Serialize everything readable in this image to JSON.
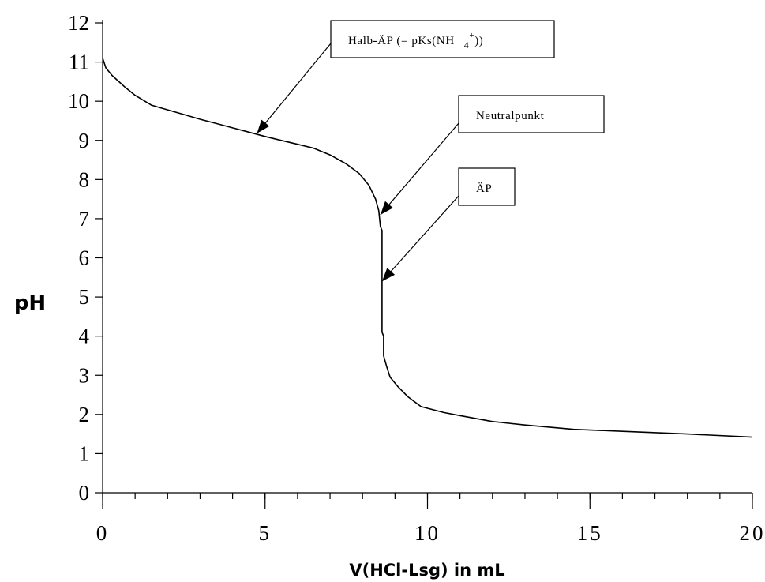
{
  "chart_data": {
    "type": "line",
    "title": "",
    "xlabel": "V(HCl-Lsg) in mL",
    "ylabel": "pH",
    "xlim": [
      0,
      20
    ],
    "ylim": [
      0,
      12
    ],
    "x_ticks": [
      "0",
      "5",
      "10",
      "15",
      "20"
    ],
    "y_ticks": [
      "0",
      "1",
      "2",
      "3",
      "4",
      "5",
      "6",
      "7",
      "8",
      "9",
      "10",
      "11",
      "12"
    ],
    "x_minor_step": 1,
    "grid": false,
    "series": [
      {
        "color": "#000000",
        "points": [
          [
            0,
            11.1
          ],
          [
            0.1,
            10.85
          ],
          [
            0.3,
            10.65
          ],
          [
            0.5,
            10.5
          ],
          [
            0.7,
            10.35
          ],
          [
            1.0,
            10.15
          ],
          [
            1.5,
            9.9
          ],
          [
            2.0,
            9.78
          ],
          [
            2.5,
            9.66
          ],
          [
            3.0,
            9.54
          ],
          [
            3.5,
            9.43
          ],
          [
            4.0,
            9.32
          ],
          [
            4.5,
            9.21
          ],
          [
            5.0,
            9.1
          ],
          [
            5.5,
            9.0
          ],
          [
            6.0,
            8.9
          ],
          [
            6.5,
            8.8
          ],
          [
            7.0,
            8.63
          ],
          [
            7.5,
            8.4
          ],
          [
            7.9,
            8.15
          ],
          [
            8.2,
            7.85
          ],
          [
            8.4,
            7.5
          ],
          [
            8.5,
            7.2
          ],
          [
            8.55,
            6.8
          ],
          [
            8.6,
            6.7
          ],
          [
            8.6,
            4.1
          ],
          [
            8.65,
            4.0
          ],
          [
            8.65,
            3.5
          ],
          [
            8.75,
            3.2
          ],
          [
            8.85,
            2.95
          ],
          [
            9.1,
            2.7
          ],
          [
            9.4,
            2.45
          ],
          [
            9.8,
            2.2
          ],
          [
            10.5,
            2.05
          ],
          [
            11.0,
            1.97
          ],
          [
            12.0,
            1.82
          ],
          [
            13.0,
            1.73
          ],
          [
            14.5,
            1.62
          ],
          [
            16.0,
            1.57
          ],
          [
            18.0,
            1.5
          ],
          [
            20.0,
            1.42
          ]
        ]
      }
    ],
    "annotations": [
      {
        "text": "Halb-ÄP (= pKs(NH",
        "sub": "4",
        "sup": "+",
        "tail": "))",
        "target": [
          4.75,
          9.18
        ]
      },
      {
        "text": "Neutralpunkt",
        "target": [
          8.55,
          7.1
        ]
      },
      {
        "text": "ÄP",
        "target": [
          8.6,
          5.4
        ]
      }
    ]
  }
}
